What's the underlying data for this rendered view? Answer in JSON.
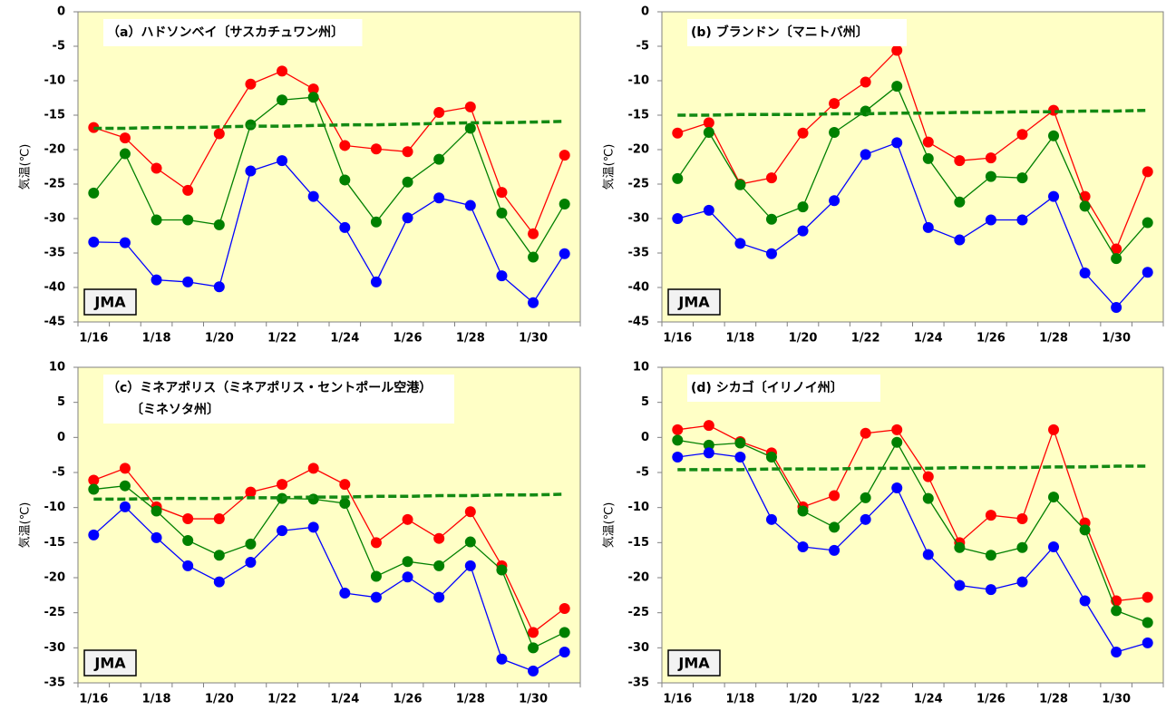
{
  "chart_data": [
    {
      "type": "line",
      "title": [
        "（a）ハドソンベイ〔サスカチュワン州〕"
      ],
      "ylabel": "気温(℃)",
      "annotation": "JMA",
      "categories": [
        "1/16",
        null,
        "1/18",
        null,
        "1/20",
        null,
        "1/22",
        null,
        "1/24",
        null,
        "1/26",
        null,
        "1/28",
        null,
        "1/30",
        null
      ],
      "ylim": [
        -45,
        0
      ],
      "yticks": [
        0,
        -5,
        -10,
        -15,
        -20,
        -25,
        -30,
        -35,
        -40,
        -45
      ],
      "series": [
        {
          "color": "#ff0000",
          "markers": true,
          "dashed": false,
          "values": [
            -16.8,
            -18.3,
            -22.7,
            -25.9,
            -17.7,
            -10.5,
            -8.6,
            -11.2,
            -19.4,
            -19.9,
            -20.3,
            -14.6,
            -13.8,
            -26.2,
            -32.2,
            -20.8
          ]
        },
        {
          "color": "#008000",
          "markers": true,
          "dashed": false,
          "values": [
            -26.3,
            -20.6,
            -30.2,
            -30.2,
            -30.9,
            -16.4,
            -12.8,
            -12.4,
            -24.4,
            -30.5,
            -24.7,
            -21.4,
            -16.9,
            -29.2,
            -35.6,
            -27.9
          ]
        },
        {
          "color": "#0000ff",
          "markers": true,
          "dashed": false,
          "values": [
            -33.4,
            -33.5,
            -38.9,
            -39.2,
            -39.9,
            -23.1,
            -21.6,
            -26.8,
            -31.3,
            -39.2,
            -29.9,
            -27.0,
            -28.1,
            -38.3,
            -42.2,
            -35.1
          ]
        },
        {
          "color": "#138a13",
          "markers": false,
          "dashed": true,
          "values": [
            -16.9,
            -16.9,
            -16.8,
            -16.8,
            -16.7,
            -16.6,
            -16.6,
            -16.5,
            -16.4,
            -16.4,
            -16.3,
            -16.2,
            -16.1,
            -16.1,
            -16.0,
            -15.9
          ]
        }
      ]
    },
    {
      "type": "line",
      "title": [
        "(b) ブランドン〔マニトバ州〕"
      ],
      "ylabel": "気温(℃)",
      "annotation": "JMA",
      "categories": [
        "1/16",
        null,
        "1/18",
        null,
        "1/20",
        null,
        "1/22",
        null,
        "1/24",
        null,
        "1/26",
        null,
        "1/28",
        null,
        "1/30",
        null
      ],
      "ylim": [
        -45,
        0
      ],
      "yticks": [
        0,
        -5,
        -10,
        -15,
        -20,
        -25,
        -30,
        -35,
        -40,
        -45
      ],
      "series": [
        {
          "color": "#ff0000",
          "markers": true,
          "dashed": false,
          "values": [
            -17.6,
            -16.1,
            -25.0,
            -24.1,
            -17.6,
            -13.3,
            -10.2,
            -5.6,
            -18.9,
            -21.6,
            -21.2,
            -17.8,
            -14.3,
            -26.8,
            -34.4,
            -23.2
          ]
        },
        {
          "color": "#008000",
          "markers": true,
          "dashed": false,
          "values": [
            -24.2,
            -17.5,
            -25.1,
            -30.1,
            -28.3,
            -17.5,
            -14.4,
            -10.8,
            -21.3,
            -27.6,
            -23.9,
            -24.1,
            -18.0,
            -28.2,
            -35.8,
            -30.6
          ]
        },
        {
          "color": "#0000ff",
          "markers": true,
          "dashed": false,
          "values": [
            -30.0,
            -28.8,
            -33.6,
            -35.1,
            -31.8,
            -27.4,
            -20.7,
            -19.0,
            -31.3,
            -33.1,
            -30.2,
            -30.2,
            -26.8,
            -37.9,
            -42.9,
            -37.8
          ]
        },
        {
          "color": "#138a13",
          "markers": false,
          "dashed": true,
          "values": [
            -15.0,
            -15.0,
            -14.9,
            -14.9,
            -14.9,
            -14.8,
            -14.8,
            -14.7,
            -14.7,
            -14.6,
            -14.6,
            -14.5,
            -14.5,
            -14.4,
            -14.4,
            -14.3
          ]
        }
      ]
    },
    {
      "type": "line",
      "title": [
        "（c）ミネアポリス（ミネアポリス・セントポール空港）",
        "〔ミネソタ州〕"
      ],
      "ylabel": "気温(℃)",
      "annotation": "JMA",
      "categories": [
        "1/16",
        null,
        "1/18",
        null,
        "1/20",
        null,
        "1/22",
        null,
        "1/24",
        null,
        "1/26",
        null,
        "1/28",
        null,
        "1/30",
        null
      ],
      "ylim": [
        -35,
        10
      ],
      "yticks": [
        10,
        5,
        0,
        -5,
        -10,
        -15,
        -20,
        -25,
        -30,
        -35
      ],
      "series": [
        {
          "color": "#ff0000",
          "markers": true,
          "dashed": false,
          "values": [
            -6.1,
            -4.4,
            -9.9,
            -11.6,
            -11.6,
            -7.8,
            -6.7,
            -4.4,
            -6.7,
            -15.0,
            -11.7,
            -14.4,
            -10.6,
            -18.3,
            -27.8,
            -24.4
          ]
        },
        {
          "color": "#008000",
          "markers": true,
          "dashed": false,
          "values": [
            -7.4,
            -6.9,
            -10.5,
            -14.7,
            -16.8,
            -15.2,
            -8.7,
            -8.8,
            -9.4,
            -19.8,
            -17.7,
            -18.3,
            -14.9,
            -18.9,
            -30.0,
            -27.8
          ]
        },
        {
          "color": "#0000ff",
          "markers": true,
          "dashed": false,
          "values": [
            -13.9,
            -9.9,
            -14.3,
            -18.3,
            -20.6,
            -17.8,
            -13.3,
            -12.8,
            -22.2,
            -22.8,
            -19.9,
            -22.8,
            -18.3,
            -31.6,
            -33.3,
            -30.6
          ]
        },
        {
          "color": "#138a13",
          "markers": false,
          "dashed": true,
          "values": [
            -8.8,
            -8.8,
            -8.7,
            -8.7,
            -8.7,
            -8.6,
            -8.6,
            -8.5,
            -8.5,
            -8.4,
            -8.4,
            -8.3,
            -8.3,
            -8.2,
            -8.2,
            -8.1
          ]
        }
      ]
    },
    {
      "type": "line",
      "title": [
        "(d) シカゴ〔イリノイ州〕"
      ],
      "ylabel": "気温(℃)",
      "annotation": "JMA",
      "categories": [
        "1/16",
        null,
        "1/18",
        null,
        "1/20",
        null,
        "1/22",
        null,
        "1/24",
        null,
        "1/26",
        null,
        "1/28",
        null,
        "1/30",
        null
      ],
      "ylim": [
        -35,
        10
      ],
      "yticks": [
        10,
        5,
        0,
        -5,
        -10,
        -15,
        -20,
        -25,
        -30,
        -35
      ],
      "series": [
        {
          "color": "#ff0000",
          "markers": true,
          "dashed": false,
          "values": [
            1.1,
            1.7,
            -0.6,
            -2.2,
            -9.9,
            -8.3,
            0.6,
            1.1,
            -5.6,
            -15.0,
            -11.1,
            -11.6,
            1.1,
            -12.2,
            -23.3,
            -22.8
          ]
        },
        {
          "color": "#008000",
          "markers": true,
          "dashed": false,
          "values": [
            -0.4,
            -1.1,
            -0.8,
            -2.8,
            -10.5,
            -12.8,
            -8.6,
            -0.7,
            -8.7,
            -15.7,
            -16.8,
            -15.7,
            -8.5,
            -13.2,
            -24.7,
            -26.4
          ]
        },
        {
          "color": "#0000ff",
          "markers": true,
          "dashed": false,
          "values": [
            -2.8,
            -2.2,
            -2.8,
            -11.7,
            -15.6,
            -16.1,
            -11.7,
            -7.2,
            -16.7,
            -21.1,
            -21.7,
            -20.6,
            -15.6,
            -23.3,
            -30.6,
            -29.3
          ]
        },
        {
          "color": "#138a13",
          "markers": false,
          "dashed": true,
          "values": [
            -4.6,
            -4.6,
            -4.6,
            -4.5,
            -4.5,
            -4.5,
            -4.4,
            -4.4,
            -4.4,
            -4.3,
            -4.3,
            -4.3,
            -4.2,
            -4.2,
            -4.1,
            -4.1
          ]
        }
      ]
    }
  ]
}
